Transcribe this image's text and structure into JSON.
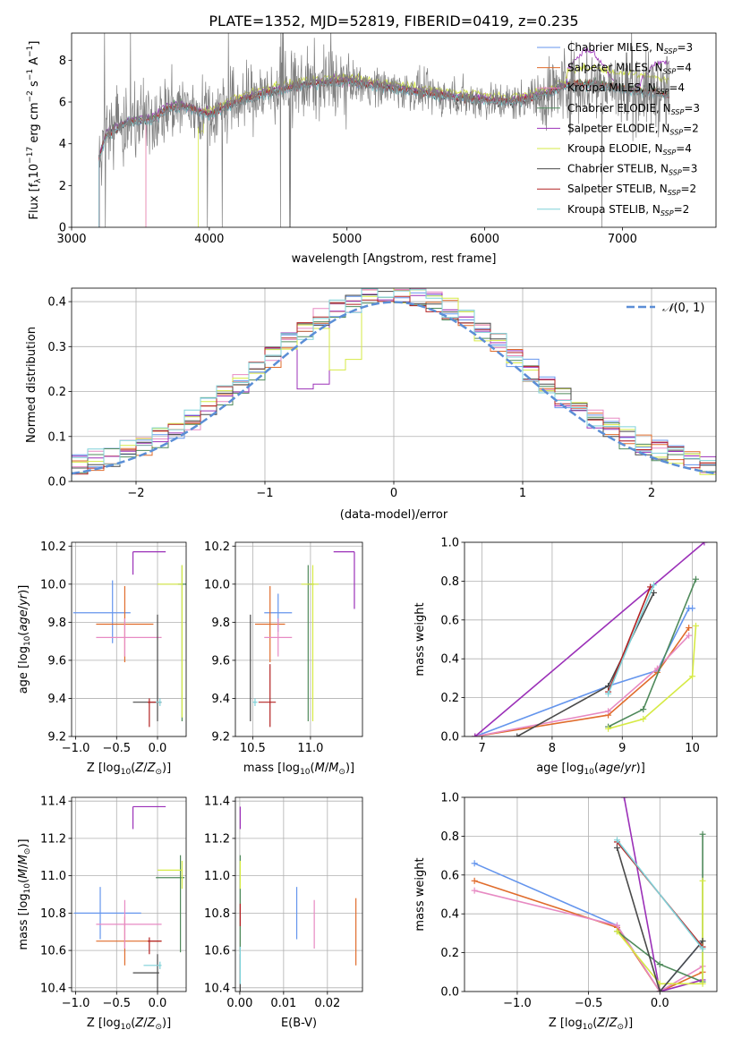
{
  "figure": {
    "title": "PLATE=1352, MJD=52819, FIBERID=0419, z=0.235"
  },
  "series_styles": [
    {
      "name": "Chabrier MILES",
      "nssp": "3",
      "color": "#6495ed"
    },
    {
      "name": "Salpeter MILES",
      "nssp": "4",
      "color": "#e06c2c"
    },
    {
      "name": "Kroupa MILES",
      "nssp": "4",
      "color": "#e78ac3"
    },
    {
      "name": "Chabrier ELODIE",
      "nssp": "3",
      "color": "#4f8a5b"
    },
    {
      "name": "Salpeter ELODIE",
      "nssp": "2",
      "color": "#9b30b8"
    },
    {
      "name": "Kroupa ELODIE",
      "nssp": "4",
      "color": "#d6ea45"
    },
    {
      "name": "Chabrier STELIB",
      "nssp": "3",
      "color": "#4a4a4a"
    },
    {
      "name": "Salpeter STELIB",
      "nssp": "2",
      "color": "#b22222"
    },
    {
      "name": "Kroupa STELIB",
      "nssp": "2",
      "color": "#7fd1d8"
    }
  ],
  "chart_data": [
    {
      "id": "spectrum",
      "type": "line",
      "title": "PLATE=1352, MJD=52819, FIBERID=0419, z=0.235",
      "xlabel": "wavelength [Angstrom, rest frame]",
      "ylabel": "Flux [f",
      "xlim": [
        3000,
        7680
      ],
      "ylim": [
        0,
        9.3
      ],
      "xticks": [
        3000,
        4000,
        5000,
        6000,
        7000
      ],
      "yticks": [
        0,
        2,
        4,
        6,
        8
      ],
      "grid": false,
      "legend_position": "right",
      "data_color": "#7f7f7f",
      "x_start": 3200,
      "x_end": 7340,
      "continuum_knots": {
        "x": [
          3200,
          3250,
          3400,
          3600,
          3700,
          3800,
          3900,
          4000,
          4200,
          4400,
          4600,
          4800,
          5000,
          5200,
          5400,
          5600,
          5800,
          6000,
          6200,
          6400,
          6600,
          6800,
          7000,
          7200,
          7340
        ],
        "y": [
          3.3,
          4.4,
          5.0,
          5.2,
          5.7,
          5.8,
          5.6,
          5.4,
          6.0,
          6.4,
          6.7,
          6.9,
          7.0,
          6.8,
          6.6,
          6.4,
          6.2,
          6.1,
          6.0,
          6.3,
          6.8,
          6.9,
          6.6,
          6.5,
          6.3
        ]
      }
    },
    {
      "id": "residuals",
      "type": "histogram",
      "xlabel": "(data-model)/error",
      "ylabel": "Normed distribution",
      "xlim": [
        -2.5,
        2.5
      ],
      "ylim": [
        0,
        0.43
      ],
      "xticks": [
        -2,
        -1,
        0,
        1,
        2
      ],
      "yticks": [
        0.0,
        0.1,
        0.2,
        0.3,
        0.4
      ],
      "grid": true,
      "bin_edges": [
        -2.5,
        2.5
      ],
      "n_bins": 40,
      "reference_curve": {
        "label": "N(0,1)",
        "color": "#5b8ed6",
        "mean": 0,
        "sigma": 1
      },
      "legend_position": "top-right"
    },
    {
      "id": "age-vs-Z",
      "type": "errorbar",
      "xlabel": "Z [log10(Z/Z⊙)]",
      "ylabel": "age  [log10(age/yr)]",
      "xlim": [
        -1.05,
        0.35
      ],
      "ylim": [
        9.2,
        10.22
      ],
      "xticks": [
        -1.0,
        -0.5,
        0.0
      ],
      "yticks": [
        9.2,
        9.4,
        9.6,
        9.8,
        10.0,
        10.2
      ],
      "grid": true,
      "points": [
        {
          "series": 0,
          "x": -0.55,
          "y": 9.85,
          "xerr": [
            0.48,
            0.22
          ],
          "yerr": [
            0.16,
            0.17
          ]
        },
        {
          "series": 1,
          "x": -0.4,
          "y": 9.79,
          "xerr": [
            0.35,
            0.35
          ],
          "yerr": [
            0.2,
            0.2
          ]
        },
        {
          "series": 2,
          "x": -0.4,
          "y": 9.72,
          "xerr": [
            0.35,
            0.45
          ],
          "yerr": [
            0.1,
            0.1
          ]
        },
        {
          "series": 3,
          "x": 0.3,
          "y": 10.0,
          "xerr": [
            0.05,
            0.05
          ],
          "yerr": [
            0.72,
            0.1
          ]
        },
        {
          "series": 4,
          "x": -0.3,
          "y": 10.17,
          "xerr": [
            0.0,
            0.4
          ],
          "yerr": [
            0.12,
            0.0
          ]
        },
        {
          "series": 5,
          "x": 0.3,
          "y": 10.0,
          "xerr": [
            0.3,
            0.0
          ],
          "yerr": [
            0.7,
            0.1
          ]
        },
        {
          "series": 6,
          "x": 0.0,
          "y": 9.38,
          "xerr": [
            0.3,
            0.02
          ],
          "yerr": [
            0.1,
            0.46
          ]
        },
        {
          "series": 7,
          "x": -0.1,
          "y": 9.38,
          "xerr": [
            0.02,
            0.15
          ],
          "yerr": [
            0.13,
            0.02
          ]
        },
        {
          "series": 8,
          "x": 0.03,
          "y": 9.38,
          "xerr": [
            0.05,
            0.02
          ],
          "yerr": [
            0.02,
            0.02
          ]
        }
      ]
    },
    {
      "id": "age-vs-mass",
      "type": "errorbar",
      "xlabel": "mass [log10(M/M⊙)]",
      "ylabel": "",
      "xlim": [
        10.35,
        11.45
      ],
      "ylim": [
        9.2,
        10.22
      ],
      "xticks": [
        10.5,
        11.0
      ],
      "yticks": [
        9.2,
        9.4,
        9.6,
        9.8,
        10.0,
        10.2
      ],
      "grid": true,
      "points": [
        {
          "series": 0,
          "x": 10.72,
          "y": 9.85,
          "xerr": [
            0.12,
            0.12
          ],
          "yerr": [
            0.1,
            0.1
          ]
        },
        {
          "series": 1,
          "x": 10.65,
          "y": 9.79,
          "xerr": [
            0.13,
            0.13
          ],
          "yerr": [
            0.2,
            0.2
          ]
        },
        {
          "series": 2,
          "x": 10.72,
          "y": 9.72,
          "xerr": [
            0.12,
            0.12
          ],
          "yerr": [
            0.1,
            0.1
          ]
        },
        {
          "series": 3,
          "x": 10.98,
          "y": 10.0,
          "xerr": [
            0.0,
            0.05
          ],
          "yerr": [
            0.72,
            0.1
          ]
        },
        {
          "series": 4,
          "x": 11.38,
          "y": 10.17,
          "xerr": [
            0.18,
            0.0
          ],
          "yerr": [
            0.3,
            0.0
          ]
        },
        {
          "series": 5,
          "x": 11.02,
          "y": 10.0,
          "xerr": [
            0.1,
            0.05
          ],
          "yerr": [
            0.72,
            0.1
          ]
        },
        {
          "series": 6,
          "x": 10.48,
          "y": 9.38,
          "xerr": [
            0.0,
            0.0
          ],
          "yerr": [
            0.1,
            0.46
          ]
        },
        {
          "series": 7,
          "x": 10.65,
          "y": 9.38,
          "xerr": [
            0.1,
            0.05
          ],
          "yerr": [
            0.13,
            0.2
          ]
        },
        {
          "series": 8,
          "x": 10.52,
          "y": 9.38,
          "xerr": [
            0.02,
            0.02
          ],
          "yerr": [
            0.02,
            0.02
          ]
        }
      ]
    },
    {
      "id": "massweight-vs-age",
      "type": "line",
      "xlabel": "age  [log10(age/yr)]",
      "ylabel": "mass weight",
      "xlim": [
        6.75,
        10.35
      ],
      "ylim": [
        0,
        1.0
      ],
      "xticks": [
        7,
        8,
        9,
        10
      ],
      "yticks": [
        0.0,
        0.2,
        0.4,
        0.6,
        0.8,
        1.0
      ],
      "grid": true,
      "series": [
        {
          "series": 0,
          "x": [
            6.9,
            8.8,
            9.5,
            9.95,
            10.0
          ],
          "y": [
            0.0,
            0.26,
            0.34,
            0.66,
            0.66
          ]
        },
        {
          "series": 1,
          "x": [
            6.9,
            8.8,
            9.5,
            9.95
          ],
          "y": [
            0.0,
            0.11,
            0.33,
            0.56
          ]
        },
        {
          "series": 2,
          "x": [
            6.9,
            8.8,
            9.5,
            9.95
          ],
          "y": [
            0.0,
            0.13,
            0.35,
            0.52
          ]
        },
        {
          "series": 3,
          "x": [
            8.8,
            9.3,
            10.05
          ],
          "y": [
            0.05,
            0.14,
            0.81
          ]
        },
        {
          "series": 4,
          "x": [
            6.9,
            10.17
          ],
          "y": [
            0.0,
            1.0
          ]
        },
        {
          "series": 5,
          "x": [
            8.8,
            9.3,
            10.0,
            10.05
          ],
          "y": [
            0.04,
            0.09,
            0.31,
            0.57
          ]
        },
        {
          "series": 6,
          "x": [
            7.5,
            8.8,
            9.45
          ],
          "y": [
            0.0,
            0.26,
            0.74
          ]
        },
        {
          "series": 7,
          "x": [
            8.8,
            9.4
          ],
          "y": [
            0.23,
            0.77
          ]
        },
        {
          "series": 8,
          "x": [
            8.8,
            9.45
          ],
          "y": [
            0.22,
            0.78
          ]
        }
      ]
    },
    {
      "id": "mass-vs-Z",
      "type": "errorbar",
      "xlabel": "Z [log10(Z/Z⊙)]",
      "ylabel": "mass [log10(M/M⊙)]",
      "xlim": [
        -1.05,
        0.35
      ],
      "ylim": [
        10.38,
        11.42
      ],
      "xticks": [
        -1.0,
        -0.5,
        0.0
      ],
      "yticks": [
        10.4,
        10.6,
        10.8,
        11.0,
        11.2,
        11.4
      ],
      "grid": true,
      "points": [
        {
          "series": 0,
          "x": -0.7,
          "y": 10.8,
          "xerr": [
            0.32,
            0.5
          ],
          "yerr": [
            0.14,
            0.14
          ]
        },
        {
          "series": 1,
          "x": -0.4,
          "y": 10.65,
          "xerr": [
            0.35,
            0.45
          ],
          "yerr": [
            0.13,
            0.13
          ]
        },
        {
          "series": 2,
          "x": -0.4,
          "y": 10.74,
          "xerr": [
            0.35,
            0.45
          ],
          "yerr": [
            0.13,
            0.13
          ]
        },
        {
          "series": 3,
          "x": 0.28,
          "y": 10.99,
          "xerr": [
            0.3,
            0.05
          ],
          "yerr": [
            0.4,
            0.12
          ]
        },
        {
          "series": 4,
          "x": -0.3,
          "y": 11.37,
          "xerr": [
            0.0,
            0.4
          ],
          "yerr": [
            0.12,
            0.0
          ]
        },
        {
          "series": 5,
          "x": 0.3,
          "y": 11.03,
          "xerr": [
            0.3,
            0.0
          ],
          "yerr": [
            0.1,
            0.05
          ]
        },
        {
          "series": 6,
          "x": 0.0,
          "y": 10.48,
          "xerr": [
            0.3,
            0.02
          ],
          "yerr": [
            0.1,
            0.1
          ]
        },
        {
          "series": 7,
          "x": -0.1,
          "y": 10.65,
          "xerr": [
            0.02,
            0.15
          ],
          "yerr": [
            0.07,
            0.02
          ]
        },
        {
          "series": 8,
          "x": 0.03,
          "y": 10.52,
          "xerr": [
            0.2,
            0.02
          ],
          "yerr": [
            0.02,
            0.02
          ]
        }
      ]
    },
    {
      "id": "mass-vs-ebv",
      "type": "errorbar",
      "xlabel": "E(B-V)",
      "ylabel": "",
      "xlim": [
        -0.001,
        0.028
      ],
      "ylim": [
        10.38,
        11.42
      ],
      "xticks": [
        0.0,
        0.01,
        0.02
      ],
      "yticks": [
        10.4,
        10.6,
        10.8,
        11.0,
        11.2,
        11.4
      ],
      "grid": true,
      "points": [
        {
          "series": 0,
          "x": 0.013,
          "y": 10.8,
          "yerr": [
            0.14,
            0.14
          ]
        },
        {
          "series": 1,
          "x": 0.0265,
          "y": 10.7,
          "yerr": [
            0.18,
            0.18
          ]
        },
        {
          "series": 2,
          "x": 0.017,
          "y": 10.74,
          "yerr": [
            0.13,
            0.13
          ]
        },
        {
          "series": 3,
          "x": 0.0,
          "y": 10.99,
          "yerr": [
            0.4,
            0.12
          ]
        },
        {
          "series": 4,
          "x": 0.0,
          "y": 11.37,
          "yerr": [
            0.12,
            0.0
          ]
        },
        {
          "series": 5,
          "x": 0.0,
          "y": 11.03,
          "yerr": [
            0.1,
            0.05
          ]
        },
        {
          "series": 6,
          "x": 0.0,
          "y": 10.48,
          "yerr": [
            0.1,
            0.1
          ]
        },
        {
          "series": 7,
          "x": 0.0,
          "y": 10.8,
          "yerr": [
            0.07,
            0.05
          ]
        },
        {
          "series": 8,
          "x": 0.0,
          "y": 10.52,
          "yerr": [
            0.1,
            0.1
          ]
        }
      ]
    },
    {
      "id": "massweight-vs-Z",
      "type": "line",
      "xlabel": "Z [log10(Z/Z⊙)]",
      "ylabel": "mass weight",
      "xlim": [
        -1.37,
        0.4
      ],
      "ylim": [
        0,
        1.0
      ],
      "xticks": [
        -1.0,
        -0.5,
        0.0
      ],
      "yticks": [
        0.0,
        0.2,
        0.4,
        0.6,
        0.8,
        1.0
      ],
      "grid": true,
      "series": [
        {
          "series": 0,
          "x": [
            -1.3,
            -0.3,
            0.0,
            0.3
          ],
          "y": [
            0.66,
            0.34,
            0.0,
            0.26
          ]
        },
        {
          "series": 1,
          "x": [
            -1.3,
            -0.3,
            0.0,
            0.3
          ],
          "y": [
            0.57,
            0.33,
            0.0,
            0.1
          ]
        },
        {
          "series": 2,
          "x": [
            -1.3,
            -0.3,
            0.0,
            0.3
          ],
          "y": [
            0.52,
            0.34,
            0.0,
            0.13
          ]
        },
        {
          "series": 3,
          "x": [
            -0.3,
            0.0,
            0.3,
            0.3
          ],
          "y": [
            0.31,
            0.14,
            0.05,
            0.81
          ]
        },
        {
          "series": 4,
          "x": [
            -0.25,
            0.0,
            0.3
          ],
          "y": [
            1.0,
            0.0,
            0.06
          ]
        },
        {
          "series": 5,
          "x": [
            -0.3,
            0.0,
            0.3,
            0.3
          ],
          "y": [
            0.31,
            0.04,
            0.04,
            0.57
          ]
        },
        {
          "series": 6,
          "x": [
            -0.3,
            0.0,
            0.3
          ],
          "y": [
            0.74,
            0.0,
            0.26
          ]
        },
        {
          "series": 7,
          "x": [
            -0.3,
            0.3
          ],
          "y": [
            0.77,
            0.23
          ]
        },
        {
          "series": 8,
          "x": [
            -0.3,
            0.3
          ],
          "y": [
            0.78,
            0.22
          ]
        }
      ]
    }
  ]
}
